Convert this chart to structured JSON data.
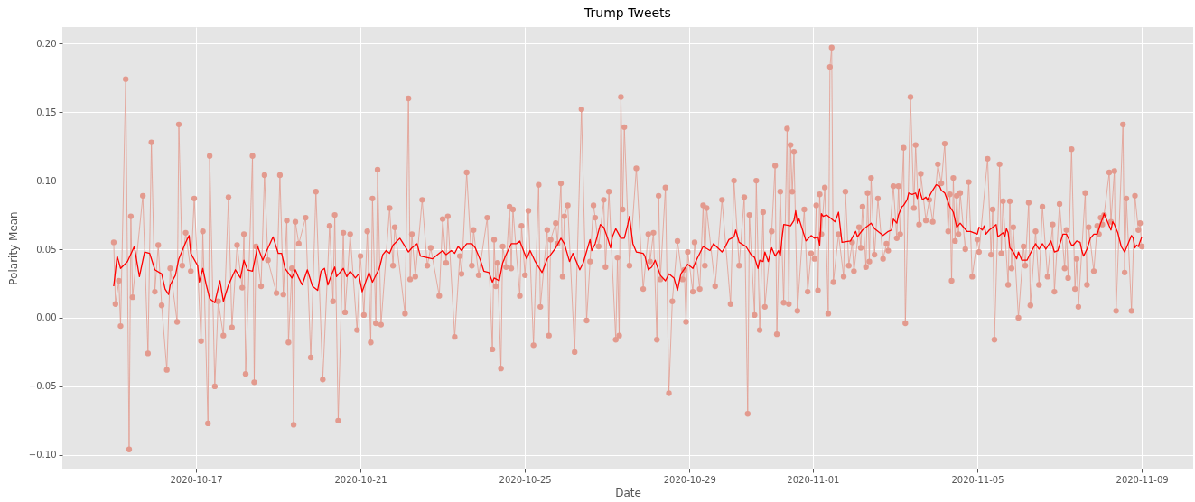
{
  "chart_data": {
    "type": "line",
    "title": "Trump Tweets",
    "xlabel": "Date",
    "ylabel": "Polarity Mean",
    "xlim": [
      "2020-10-13T18:00",
      "2020-11-10T06:00"
    ],
    "xticks": [
      "2020-10-17",
      "2020-10-21",
      "2020-10-25",
      "2020-10-29",
      "2020-11-01",
      "2020-11-05",
      "2020-11-09"
    ],
    "ylim": [
      -0.11,
      0.212
    ],
    "yticks": [
      {
        "value": -0.1,
        "label": "−0.10"
      },
      {
        "value": -0.05,
        "label": "−0.05"
      },
      {
        "value": 0,
        "label": "0.00"
      },
      {
        "value": 0.05,
        "label": "0.05"
      },
      {
        "value": 0.1,
        "label": "0.10"
      },
      {
        "value": 0.15,
        "label": "0.15"
      },
      {
        "value": 0.2,
        "label": "0.20"
      }
    ],
    "grid": true,
    "series": [
      {
        "marker": "circle",
        "color": "#e39a8e",
        "x": [
          "2020-10-15T00:00",
          "2020-10-15T01:00",
          "2020-10-15T03:00",
          "2020-10-15T04:00",
          "2020-10-15T07:00",
          "2020-10-15T09:00",
          "2020-10-15T10:00",
          "2020-10-15T11:00",
          "2020-10-15T17:00",
          "2020-10-15T20:00",
          "2020-10-15T22:00",
          "2020-10-16T00:00",
          "2020-10-16T02:00",
          "2020-10-16T04:00",
          "2020-10-16T07:00",
          "2020-10-16T09:00",
          "2020-10-16T13:00",
          "2020-10-16T14:00",
          "2020-10-16T16:00",
          "2020-10-16T18:00",
          "2020-10-16T21:00",
          "2020-10-16T23:00",
          "2020-10-17T03:00",
          "2020-10-17T04:00",
          "2020-10-17T07:00",
          "2020-10-17T08:00",
          "2020-10-17T11:00",
          "2020-10-17T13:00",
          "2020-10-17T16:00",
          "2020-10-17T19:00",
          "2020-10-17T21:00",
          "2020-10-18T00:00",
          "2020-10-18T03:00",
          "2020-10-18T04:00",
          "2020-10-18T05:00",
          "2020-10-18T09:00",
          "2020-10-18T10:00",
          "2020-10-18T11:00",
          "2020-10-18T14:00",
          "2020-10-18T16:00",
          "2020-10-18T18:00",
          "2020-10-18T23:00",
          "2020-10-19T01:00",
          "2020-10-19T03:00",
          "2020-10-19T05:00",
          "2020-10-19T06:00",
          "2020-10-19T08:00",
          "2020-10-19T09:00",
          "2020-10-19T10:00",
          "2020-10-19T12:00",
          "2020-10-19T16:00",
          "2020-10-19T19:00",
          "2020-10-19T22:00",
          "2020-10-20T02:00",
          "2020-10-20T06:00",
          "2020-10-20T08:00",
          "2020-10-20T09:00",
          "2020-10-20T11:00",
          "2020-10-20T14:00",
          "2020-10-20T15:00",
          "2020-10-20T18:00",
          "2020-10-20T22:00",
          "2020-10-21T00:00",
          "2020-10-21T02:00",
          "2020-10-21T04:00",
          "2020-10-21T06:00",
          "2020-10-21T07:00",
          "2020-10-21T09:00",
          "2020-10-21T10:00",
          "2020-10-21T12:00",
          "2020-10-21T17:00",
          "2020-10-21T19:00",
          "2020-10-21T20:00",
          "2020-10-22T02:00",
          "2020-10-22T04:00",
          "2020-10-22T05:00",
          "2020-10-22T06:00",
          "2020-10-22T08:00",
          "2020-10-22T12:00",
          "2020-10-22T15:00",
          "2020-10-22T17:00",
          "2020-10-22T22:00",
          "2020-10-23T00:00",
          "2020-10-23T02:00",
          "2020-10-23T03:00",
          "2020-10-23T07:00",
          "2020-10-23T10:00",
          "2020-10-23T11:00",
          "2020-10-23T14:00",
          "2020-10-23T17:00",
          "2020-10-23T18:00",
          "2020-10-23T21:00",
          "2020-10-24T02:00",
          "2020-10-24T05:00",
          "2020-10-24T06:00",
          "2020-10-24T07:00",
          "2020-10-24T08:00",
          "2020-10-24T10:00",
          "2020-10-24T11:00",
          "2020-10-24T13:00",
          "2020-10-24T15:00",
          "2020-10-24T16:00",
          "2020-10-24T17:00",
          "2020-10-24T21:00",
          "2020-10-24T22:00",
          "2020-10-25T00:00",
          "2020-10-25T02:00",
          "2020-10-25T05:00",
          "2020-10-25T08:00",
          "2020-10-25T09:00",
          "2020-10-25T13:00",
          "2020-10-25T14:00",
          "2020-10-25T15:00",
          "2020-10-25T18:00",
          "2020-10-25T19:00",
          "2020-10-25T21:00",
          "2020-10-25T22:00",
          "2020-10-25T23:00",
          "2020-10-26T01:00",
          "2020-10-26T05:00",
          "2020-10-26T09:00",
          "2020-10-26T12:00",
          "2020-10-26T14:00",
          "2020-10-26T16:00",
          "2020-10-26T17:00",
          "2020-10-26T19:00",
          "2020-10-26T22:00",
          "2020-10-26T23:00",
          "2020-10-27T01:00",
          "2020-10-27T05:00",
          "2020-10-27T06:00",
          "2020-10-27T07:00",
          "2020-10-27T08:00",
          "2020-10-27T09:00",
          "2020-10-27T10:00",
          "2020-10-27T13:00",
          "2020-10-27T17:00",
          "2020-10-27T21:00",
          "2020-10-28T00:00",
          "2020-10-28T01:00",
          "2020-10-28T03:00",
          "2020-10-28T05:00",
          "2020-10-28T06:00",
          "2020-10-28T07:00",
          "2020-10-28T10:00",
          "2020-10-28T12:00",
          "2020-10-28T14:00",
          "2020-10-28T17:00",
          "2020-10-28T20:00",
          "2020-10-28T21:00",
          "2020-10-28T22:00",
          "2020-10-28T23:00",
          "2020-10-29T02:00",
          "2020-10-29T03:00",
          "2020-10-29T06:00",
          "2020-10-29T08:00",
          "2020-10-29T09:00",
          "2020-10-29T10:00",
          "2020-10-29T15:00",
          "2020-10-29T19:00",
          "2020-10-30T00:00",
          "2020-10-30T02:00",
          "2020-10-30T05:00",
          "2020-10-30T08:00",
          "2020-10-30T10:00",
          "2020-10-30T11:00",
          "2020-10-30T14:00",
          "2020-10-30T15:00",
          "2020-10-30T17:00",
          "2020-10-30T19:00",
          "2020-10-30T20:00",
          "2020-10-31T00:00",
          "2020-10-31T02:00",
          "2020-10-31T03:00",
          "2020-10-31T05:00",
          "2020-10-31T07:00",
          "2020-10-31T09:00",
          "2020-10-31T10:00",
          "2020-10-31T11:00",
          "2020-10-31T12:00",
          "2020-10-31T13:00",
          "2020-10-31T15:00",
          "2020-10-31T19:00",
          "2020-10-31T21:00",
          "2020-10-31T23:00",
          "2020-11-01T01:00",
          "2020-11-01T02:00",
          "2020-11-01T03:00",
          "2020-11-01T04:00",
          "2020-11-01T05:00",
          "2020-11-01T07:00",
          "2020-11-01T09:00",
          "2020-11-01T10:00",
          "2020-11-01T11:00",
          "2020-11-01T12:00",
          "2020-11-01T15:00",
          "2020-11-01T18:00",
          "2020-11-01T19:00",
          "2020-11-01T21:00",
          "2020-11-01T23:00",
          "2020-11-02T00:00",
          "2020-11-02T03:00",
          "2020-11-02T04:00",
          "2020-11-02T05:00",
          "2020-11-02T07:00",
          "2020-11-02T08:00",
          "2020-11-02T09:00",
          "2020-11-02T10:00",
          "2020-11-02T12:00",
          "2020-11-02T14:00",
          "2020-11-02T17:00",
          "2020-11-02T19:00",
          "2020-11-02T20:00",
          "2020-11-02T23:00",
          "2020-11-03T01:00",
          "2020-11-03T02:00",
          "2020-11-03T03:00",
          "2020-11-03T05:00",
          "2020-11-03T06:00",
          "2020-11-03T09:00",
          "2020-11-03T11:00",
          "2020-11-03T12:00",
          "2020-11-03T14:00",
          "2020-11-03T15:00",
          "2020-11-03T18:00",
          "2020-11-03T20:00",
          "2020-11-03T22:00",
          "2020-11-04T01:00",
          "2020-11-04T03:00",
          "2020-11-04T05:00",
          "2020-11-04T07:00",
          "2020-11-04T08:00",
          "2020-11-04T09:00",
          "2020-11-04T10:00",
          "2020-11-04T11:00",
          "2020-11-04T12:00",
          "2020-11-04T13:00",
          "2020-11-04T14:00",
          "2020-11-04T17:00",
          "2020-11-04T19:00",
          "2020-11-04T21:00",
          "2020-11-05T00:00",
          "2020-11-05T01:00",
          "2020-11-05T06:00",
          "2020-11-05T08:00",
          "2020-11-05T09:00",
          "2020-11-05T10:00",
          "2020-11-05T13:00",
          "2020-11-05T14:00",
          "2020-11-05T15:00",
          "2020-11-05T18:00",
          "2020-11-05T19:00",
          "2020-11-05T20:00",
          "2020-11-05T21:00",
          "2020-11-06T00:00",
          "2020-11-06T03:00",
          "2020-11-06T04:00",
          "2020-11-06T06:00",
          "2020-11-06T07:00",
          "2020-11-06T10:00",
          "2020-11-06T12:00",
          "2020-11-06T14:00",
          "2020-11-06T17:00",
          "2020-11-06T20:00",
          "2020-11-06T21:00",
          "2020-11-07T00:00",
          "2020-11-07T03:00",
          "2020-11-07T04:00",
          "2020-11-07T05:00",
          "2020-11-07T07:00",
          "2020-11-07T09:00",
          "2020-11-07T10:00",
          "2020-11-07T11:00",
          "2020-11-07T15:00",
          "2020-11-07T16:00",
          "2020-11-07T17:00",
          "2020-11-07T20:00",
          "2020-11-07T22:00",
          "2020-11-07T23:00",
          "2020-11-08T00:00",
          "2020-11-08T01:00",
          "2020-11-08T02:00",
          "2020-11-08T05:00",
          "2020-11-08T06:00",
          "2020-11-08T08:00",
          "2020-11-08T09:00",
          "2020-11-08T13:00",
          "2020-11-08T14:00",
          "2020-11-08T15:00",
          "2020-11-08T18:00",
          "2020-11-08T20:00",
          "2020-11-08T22:00",
          "2020-11-08T23:00",
          "2020-11-09T00:00"
        ],
        "values": [
          0.055,
          0.01,
          0.027,
          -0.006,
          0.174,
          -0.096,
          0.074,
          0.015,
          0.089,
          -0.026,
          0.128,
          0.019,
          0.053,
          0.009,
          -0.038,
          0.036,
          -0.003,
          0.141,
          0.038,
          0.062,
          0.034,
          0.087,
          -0.017,
          0.063,
          -0.077,
          0.118,
          -0.05,
          0.012,
          -0.013,
          0.088,
          -0.007,
          0.053,
          0.022,
          0.061,
          -0.041,
          0.118,
          -0.047,
          0.052,
          0.023,
          0.104,
          0.042,
          0.018,
          0.104,
          0.017,
          0.071,
          -0.018,
          0.036,
          -0.078,
          0.07,
          0.054,
          0.073,
          -0.029,
          0.092,
          -0.045,
          0.067,
          0.012,
          0.075,
          -0.075,
          0.062,
          0.004,
          0.061,
          -0.009,
          0.045,
          0.002,
          0.063,
          -0.018,
          0.087,
          -0.004,
          0.108,
          -0.005,
          0.08,
          0.038,
          0.066,
          0.003,
          0.16,
          0.028,
          0.061,
          0.03,
          0.086,
          0.038,
          0.051,
          0.016,
          0.072,
          0.04,
          0.074,
          -0.014,
          0.045,
          0.032,
          0.106,
          0.038,
          0.064,
          0.031,
          0.073,
          -0.023,
          0.057,
          0.023,
          0.04,
          -0.037,
          0.052,
          0.037,
          0.081,
          0.036,
          0.079,
          0.016,
          0.067,
          0.031,
          0.078,
          -0.02,
          0.097,
          0.008,
          0.064,
          -0.013,
          0.057,
          0.069,
          0.054,
          0.098,
          0.03,
          0.074,
          0.082,
          -0.025,
          0.152,
          -0.002,
          0.041,
          0.082,
          0.073,
          0.052,
          0.086,
          0.037,
          0.092,
          -0.016,
          0.044,
          -0.013,
          0.161,
          0.079,
          0.139,
          0.038,
          0.109,
          0.021,
          0.061,
          0.041,
          0.062,
          -0.016,
          0.089,
          0.028,
          0.095,
          -0.055,
          0.012,
          0.056,
          0.028,
          0.035,
          -0.003,
          0.048,
          0.019,
          0.055,
          0.021,
          0.082,
          0.038,
          0.08,
          0.023,
          0.086,
          0.01,
          0.1,
          0.038,
          0.088,
          -0.07,
          0.075,
          0.002,
          0.1,
          -0.009,
          0.077,
          0.008,
          0.063,
          0.111,
          -0.012,
          0.092,
          0.011,
          0.138,
          0.01,
          0.126,
          0.092,
          0.121,
          0.005,
          0.079,
          0.019,
          0.047,
          0.043,
          0.082,
          0.02,
          0.09,
          0.061,
          0.095,
          0.003,
          0.183,
          0.197,
          0.026,
          0.061,
          0.03,
          0.092,
          0.038,
          0.055,
          0.034,
          0.066,
          0.051,
          0.081,
          0.037,
          0.091,
          0.041,
          0.102,
          0.046,
          0.087,
          0.043,
          0.054,
          0.049,
          0.096,
          0.058,
          0.096,
          0.061,
          0.124,
          -0.004,
          0.161,
          0.08,
          0.126,
          0.068,
          0.105,
          0.071,
          0.086,
          0.07,
          0.112,
          0.098,
          0.127,
          0.063,
          0.09,
          0.027,
          0.102,
          0.056,
          0.089,
          0.061,
          0.091,
          0.05,
          0.099,
          0.03,
          0.057,
          0.048,
          0.116,
          0.046,
          0.079,
          -0.016,
          0.112,
          0.047,
          0.085,
          0.024,
          0.085,
          0.036,
          0.066,
          0.0,
          0.052,
          0.038,
          0.084,
          0.009,
          0.063,
          0.024,
          0.081,
          0.03,
          0.068,
          0.019,
          0.083,
          0.036,
          0.064,
          0.029,
          0.123,
          0.021,
          0.043,
          0.008,
          0.091,
          0.024,
          0.066,
          0.034,
          0.067,
          0.061,
          0.073,
          0.068,
          0.075,
          0.106,
          0.07,
          0.107,
          0.005,
          0.141,
          0.033,
          0.087,
          0.005,
          0.089,
          0.064,
          0.069,
          0.052
        ]
      },
      {
        "marker": "none",
        "color": "#ff0000",
        "x": [
          "2020-10-15T00:00",
          "2020-10-15T02:00",
          "2020-10-15T04:00",
          "2020-10-15T08:00",
          "2020-10-15T12:00",
          "2020-10-15T15:00",
          "2020-10-15T18:00",
          "2020-10-15T21:00",
          "2020-10-16T00:00",
          "2020-10-16T04:00",
          "2020-10-16T06:00",
          "2020-10-16T08:00",
          "2020-10-16T09:00",
          "2020-10-16T12:00",
          "2020-10-16T14:00",
          "2020-10-16T18:00",
          "2020-10-16T20:00",
          "2020-10-16T21:00",
          "2020-10-17T01:00",
          "2020-10-17T02:00",
          "2020-10-17T04:00",
          "2020-10-17T06:00",
          "2020-10-17T08:00",
          "2020-10-17T11:00",
          "2020-10-17T14:00",
          "2020-10-17T16:00",
          "2020-10-17T19:00",
          "2020-10-17T23:00",
          "2020-10-18T02:00",
          "2020-10-18T04:00",
          "2020-10-18T06:00",
          "2020-10-18T09:00",
          "2020-10-18T12:00",
          "2020-10-18T15:00",
          "2020-10-18T17:00",
          "2020-10-18T21:00",
          "2020-10-19T00:00",
          "2020-10-19T02:00",
          "2020-10-19T04:00",
          "2020-10-19T08:00",
          "2020-10-19T10:00",
          "2020-10-19T12:00",
          "2020-10-19T14:00",
          "2020-10-19T17:00",
          "2020-10-19T20:00",
          "2020-10-19T23:00",
          "2020-10-20T01:00",
          "2020-10-20T03:00",
          "2020-10-20T05:00",
          "2020-10-20T07:00",
          "2020-10-20T09:00",
          "2020-10-20T10:00",
          "2020-10-20T14:00",
          "2020-10-20T16:00",
          "2020-10-20T18:00",
          "2020-10-20T21:00",
          "2020-10-20T23:00",
          "2020-10-21T01:00",
          "2020-10-21T05:00",
          "2020-10-21T07:00",
          "2020-10-21T11:00",
          "2020-10-21T13:00",
          "2020-10-21T15:00",
          "2020-10-21T17:00",
          "2020-10-21T19:00",
          "2020-10-21T23:00",
          "2020-10-22T01:00",
          "2020-10-22T04:00",
          "2020-10-22T06:00",
          "2020-10-22T09:00",
          "2020-10-22T11:00",
          "2020-10-22T18:00",
          "2020-10-22T21:00",
          "2020-10-23T00:00",
          "2020-10-23T02:00",
          "2020-10-23T05:00",
          "2020-10-23T07:00",
          "2020-10-23T09:00",
          "2020-10-23T11:00",
          "2020-10-23T14:00",
          "2020-10-23T17:00",
          "2020-10-23T19:00",
          "2020-10-23T22:00",
          "2020-10-24T00:00",
          "2020-10-24T03:00",
          "2020-10-24T05:00",
          "2020-10-24T06:00",
          "2020-10-24T09:00",
          "2020-10-24T11:00",
          "2020-10-24T13:00",
          "2020-10-24T16:00",
          "2020-10-24T19:00",
          "2020-10-24T21:00",
          "2020-10-25T01:00",
          "2020-10-25T03:00",
          "2020-10-25T06:00",
          "2020-10-25T10:00",
          "2020-10-25T13:00",
          "2020-10-25T15:00",
          "2020-10-25T18:00",
          "2020-10-25T21:00",
          "2020-10-25T23:00",
          "2020-10-26T02:00",
          "2020-10-26T04:00",
          "2020-10-26T08:00",
          "2020-10-26T10:00",
          "2020-10-26T14:00",
          "2020-10-26T15:00",
          "2020-10-26T17:00",
          "2020-10-26T20:00",
          "2020-10-26T22:00",
          "2020-10-27T00:00",
          "2020-10-27T02:00",
          "2020-10-27T03:00",
          "2020-10-27T05:00",
          "2020-10-27T08:00",
          "2020-10-27T10:00",
          "2020-10-27T12:00",
          "2020-10-27T13:00",
          "2020-10-27T15:00",
          "2020-10-27T17:00",
          "2020-10-27T21:00",
          "2020-10-27T22:00",
          "2020-10-28T00:00",
          "2020-10-28T02:00",
          "2020-10-28T04:00",
          "2020-10-28T07:00",
          "2020-10-28T10:00",
          "2020-10-28T12:00",
          "2020-10-28T15:00",
          "2020-10-28T17:00",
          "2020-10-28T19:00",
          "2020-10-28T23:00",
          "2020-10-29T02:00",
          "2020-10-29T04:00",
          "2020-10-29T08:00",
          "2020-10-29T12:00",
          "2020-10-29T14:00",
          "2020-10-29T19:00",
          "2020-10-29T21:00",
          "2020-10-29T23:00",
          "2020-10-30T02:00",
          "2020-10-30T03:00",
          "2020-10-30T05:00",
          "2020-10-30T09:00",
          "2020-10-30T12:00",
          "2020-10-30T14:00",
          "2020-10-30T16:00",
          "2020-10-30T17:00",
          "2020-10-30T19:00",
          "2020-10-30T20:00",
          "2020-10-30T22:00",
          "2020-10-31T00:00",
          "2020-10-31T02:00",
          "2020-10-31T04:00",
          "2020-10-31T05:00",
          "2020-10-31T06:00",
          "2020-10-31T07:00",
          "2020-10-31T11:00",
          "2020-10-31T13:00",
          "2020-10-31T14:00",
          "2020-10-31T15:00",
          "2020-10-31T16:00",
          "2020-10-31T18:00",
          "2020-10-31T20:00",
          "2020-10-31T23:00",
          "2020-11-01T01:00",
          "2020-11-01T03:00",
          "2020-11-01T04:00",
          "2020-11-01T05:00",
          "2020-11-01T06:00",
          "2020-11-01T08:00",
          "2020-11-01T10:00",
          "2020-11-01T13:00",
          "2020-11-01T15:00",
          "2020-11-01T17:00",
          "2020-11-01T22:00",
          "2020-11-02T01:00",
          "2020-11-02T02:00",
          "2020-11-02T05:00",
          "2020-11-02T08:00",
          "2020-11-02T10:00",
          "2020-11-02T12:00",
          "2020-11-02T15:00",
          "2020-11-02T17:00",
          "2020-11-02T20:00",
          "2020-11-02T22:00",
          "2020-11-02T23:00",
          "2020-11-03T01:00",
          "2020-11-03T02:00",
          "2020-11-03T04:00",
          "2020-11-03T05:00",
          "2020-11-03T07:00",
          "2020-11-03T08:00",
          "2020-11-03T10:00",
          "2020-11-03T12:00",
          "2020-11-03T13:00",
          "2020-11-03T14:00",
          "2020-11-03T16:00",
          "2020-11-03T18:00",
          "2020-11-03T19:00",
          "2020-11-03T21:00",
          "2020-11-03T22:00",
          "2020-11-04T00:00",
          "2020-11-04T02:00",
          "2020-11-04T03:00",
          "2020-11-04T05:00",
          "2020-11-04T08:00",
          "2020-11-04T10:00",
          "2020-11-04T12:00",
          "2020-11-04T14:00",
          "2020-11-04T16:00",
          "2020-11-04T18:00",
          "2020-11-04T20:00",
          "2020-11-04T22:00",
          "2020-11-05T00:00",
          "2020-11-05T01:00",
          "2020-11-05T03:00",
          "2020-11-05T04:00",
          "2020-11-05T05:00",
          "2020-11-05T07:00",
          "2020-11-05T09:00",
          "2020-11-05T11:00",
          "2020-11-05T12:00",
          "2020-11-05T15:00",
          "2020-11-05T16:00",
          "2020-11-05T17:00",
          "2020-11-05T18:00",
          "2020-11-05T19:00",
          "2020-11-05T21:00",
          "2020-11-05T23:00",
          "2020-11-06T00:00",
          "2020-11-06T02:00",
          "2020-11-06T05:00",
          "2020-11-06T07:00",
          "2020-11-06T10:00",
          "2020-11-06T12:00",
          "2020-11-06T14:00",
          "2020-11-06T16:00",
          "2020-11-06T19:00",
          "2020-11-06T21:00",
          "2020-11-06T23:00",
          "2020-11-07T02:00",
          "2020-11-07T04:00",
          "2020-11-07T07:00",
          "2020-11-07T08:00",
          "2020-11-07T10:00",
          "2020-11-07T12:00",
          "2020-11-07T13:00",
          "2020-11-07T14:00",
          "2020-11-07T16:00",
          "2020-11-07T18:00",
          "2020-11-07T20:00",
          "2020-11-07T22:00",
          "2020-11-08T00:00",
          "2020-11-08T01:00",
          "2020-11-08T02:00",
          "2020-11-08T04:00",
          "2020-11-08T06:00",
          "2020-11-08T07:00",
          "2020-11-08T08:00",
          "2020-11-08T10:00",
          "2020-11-08T12:00",
          "2020-11-08T14:00",
          "2020-11-08T16:00",
          "2020-11-08T18:00",
          "2020-11-08T19:00",
          "2020-11-08T20:00",
          "2020-11-08T21:00",
          "2020-11-08T22:00",
          "2020-11-09T00:00"
        ],
        "values": [
          0.023,
          0.045,
          0.036,
          0.041,
          0.052,
          0.03,
          0.048,
          0.047,
          0.035,
          0.032,
          0.021,
          0.017,
          0.024,
          0.031,
          0.043,
          0.055,
          0.06,
          0.047,
          0.038,
          0.026,
          0.036,
          0.024,
          0.014,
          0.011,
          0.027,
          0.012,
          0.024,
          0.035,
          0.029,
          0.042,
          0.035,
          0.034,
          0.052,
          0.042,
          0.048,
          0.059,
          0.047,
          0.047,
          0.036,
          0.029,
          0.035,
          0.029,
          0.024,
          0.035,
          0.023,
          0.02,
          0.034,
          0.036,
          0.024,
          0.031,
          0.037,
          0.03,
          0.036,
          0.03,
          0.034,
          0.029,
          0.032,
          0.019,
          0.033,
          0.026,
          0.036,
          0.046,
          0.049,
          0.047,
          0.053,
          0.058,
          0.054,
          0.048,
          0.051,
          0.054,
          0.045,
          0.043,
          0.046,
          0.049,
          0.046,
          0.049,
          0.047,
          0.052,
          0.049,
          0.054,
          0.054,
          0.051,
          0.042,
          0.034,
          0.033,
          0.026,
          0.029,
          0.027,
          0.04,
          0.046,
          0.054,
          0.054,
          0.056,
          0.043,
          0.049,
          0.041,
          0.033,
          0.043,
          0.046,
          0.051,
          0.058,
          0.054,
          0.041,
          0.047,
          0.035,
          0.04,
          0.057,
          0.049,
          0.054,
          0.068,
          0.066,
          0.059,
          0.051,
          0.059,
          0.065,
          0.058,
          0.058,
          0.068,
          0.074,
          0.054,
          0.048,
          0.047,
          0.045,
          0.035,
          0.037,
          0.042,
          0.031,
          0.027,
          0.032,
          0.029,
          0.02,
          0.032,
          0.039,
          0.036,
          0.042,
          0.052,
          0.049,
          0.054,
          0.048,
          0.052,
          0.057,
          0.059,
          0.064,
          0.055,
          0.052,
          0.046,
          0.044,
          0.036,
          0.042,
          0.041,
          0.048,
          0.041,
          0.051,
          0.045,
          0.049,
          0.045,
          0.058,
          0.068,
          0.067,
          0.071,
          0.078,
          0.069,
          0.072,
          0.064,
          0.056,
          0.06,
          0.058,
          0.059,
          0.053,
          0.076,
          0.074,
          0.075,
          0.073,
          0.07,
          0.077,
          0.055,
          0.056,
          0.063,
          0.059,
          0.064,
          0.067,
          0.069,
          0.065,
          0.062,
          0.06,
          0.063,
          0.064,
          0.072,
          0.069,
          0.075,
          0.081,
          0.082,
          0.086,
          0.091,
          0.09,
          0.091,
          0.087,
          0.094,
          0.086,
          0.088,
          0.086,
          0.091,
          0.093,
          0.097,
          0.096,
          0.093,
          0.091,
          0.081,
          0.077,
          0.066,
          0.069,
          0.066,
          0.063,
          0.063,
          0.062,
          0.061,
          0.066,
          0.064,
          0.067,
          0.061,
          0.064,
          0.066,
          0.068,
          0.059,
          0.062,
          0.059,
          0.065,
          0.062,
          0.051,
          0.048,
          0.043,
          0.048,
          0.042,
          0.042,
          0.047,
          0.054,
          0.05,
          0.054,
          0.05,
          0.056,
          0.048,
          0.049,
          0.061,
          0.061,
          0.053,
          0.053,
          0.056,
          0.055,
          0.049,
          0.045,
          0.05,
          0.058,
          0.061,
          0.061,
          0.069,
          0.072,
          0.076,
          0.07,
          0.064,
          0.07,
          0.068,
          0.062,
          0.052,
          0.048,
          0.054,
          0.06,
          0.058,
          0.051,
          0.053,
          0.052,
          0.059
        ]
      }
    ]
  }
}
